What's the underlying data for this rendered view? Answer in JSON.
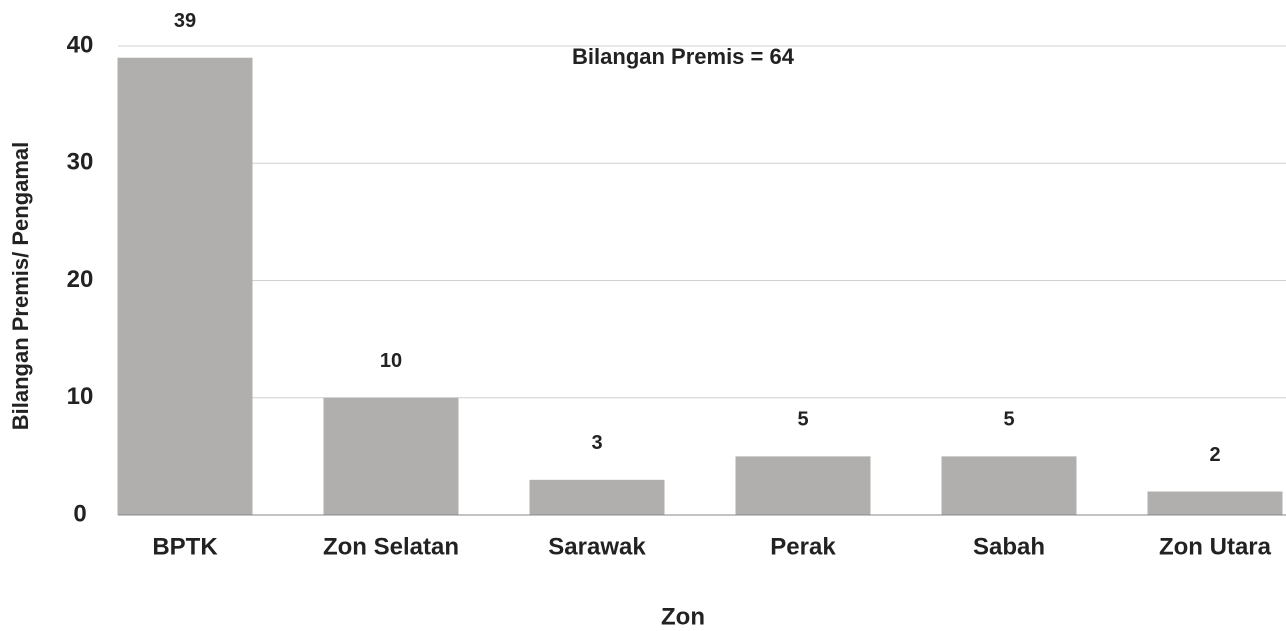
{
  "chart_data": {
    "type": "bar",
    "annotation": "Bilangan Premis = 64",
    "x_label": "Zon",
    "y_label": "Bilangan Premis/ Pengamal",
    "categories": [
      "BPTK",
      "Zon Selatan",
      "Sarawak",
      "Perak",
      "Sabah",
      "Zon Utara"
    ],
    "values": [
      39,
      10,
      3,
      5,
      5,
      2
    ],
    "color": "#b0afad",
    "ylim": [
      0,
      40
    ],
    "yticks": [
      0,
      10,
      20,
      30,
      40
    ],
    "grid": true
  }
}
